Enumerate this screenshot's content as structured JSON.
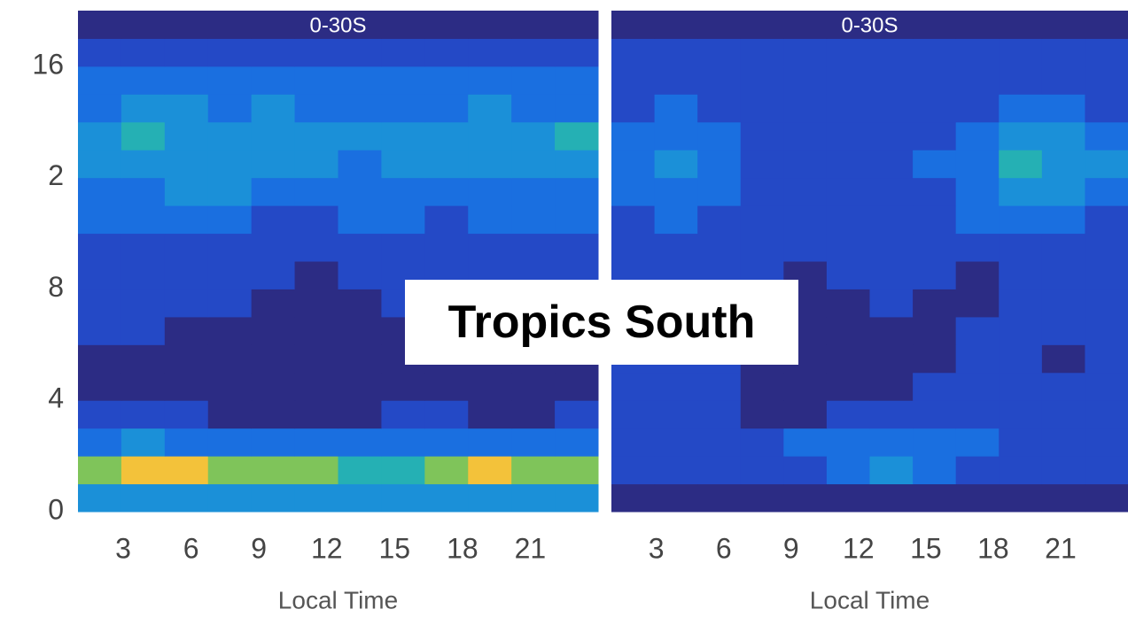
{
  "chart_data": [
    {
      "type": "heatmap",
      "title": "0-30S",
      "x_label": "Local Time",
      "xlim": [
        1,
        24
      ],
      "xticks": [
        3,
        6,
        9,
        12,
        15,
        18,
        21
      ],
      "ylim": [
        0,
        18
      ],
      "yticks": [
        0,
        4,
        8,
        {
          "value": 12,
          "label": "2"
        },
        16
      ],
      "colors": [
        "#2c2c84",
        "#2449c6",
        "#1a6fe0",
        "#1b90d8",
        "#25b0b4",
        "#7fc45a",
        "#f3c23a"
      ],
      "z": [
        [
          3,
          3,
          3,
          3,
          3,
          3,
          3,
          3,
          3,
          3,
          3,
          3
        ],
        [
          5,
          6,
          6,
          5,
          5,
          5,
          4,
          4,
          5,
          6,
          5,
          5
        ],
        [
          2,
          3,
          2,
          2,
          2,
          2,
          2,
          2,
          2,
          2,
          2,
          2
        ],
        [
          1,
          1,
          1,
          0,
          0,
          0,
          0,
          1,
          1,
          0,
          0,
          1
        ],
        [
          0,
          0,
          0,
          0,
          0,
          0,
          0,
          0,
          0,
          0,
          0,
          0
        ],
        [
          0,
          0,
          0,
          0,
          0,
          0,
          0,
          0,
          0,
          0,
          0,
          0
        ],
        [
          1,
          1,
          0,
          0,
          0,
          0,
          0,
          0,
          0,
          0,
          0,
          0
        ],
        [
          1,
          1,
          1,
          1,
          0,
          0,
          0,
          1,
          0,
          0,
          1,
          1
        ],
        [
          1,
          1,
          1,
          1,
          1,
          0,
          1,
          1,
          1,
          1,
          1,
          1
        ],
        [
          1,
          1,
          1,
          1,
          1,
          1,
          1,
          1,
          1,
          1,
          1,
          1
        ],
        [
          2,
          2,
          2,
          2,
          1,
          1,
          2,
          2,
          1,
          2,
          2,
          2
        ],
        [
          2,
          2,
          3,
          3,
          2,
          2,
          2,
          2,
          2,
          2,
          2,
          2
        ],
        [
          3,
          3,
          3,
          3,
          3,
          3,
          2,
          3,
          3,
          3,
          3,
          3
        ],
        [
          3,
          4,
          3,
          3,
          3,
          3,
          3,
          3,
          3,
          3,
          3,
          4
        ],
        [
          2,
          3,
          3,
          2,
          3,
          2,
          2,
          2,
          2,
          3,
          2,
          2
        ],
        [
          2,
          2,
          2,
          2,
          2,
          2,
          2,
          2,
          2,
          2,
          2,
          2
        ],
        [
          1,
          1,
          1,
          1,
          1,
          1,
          1,
          1,
          1,
          1,
          1,
          1
        ],
        [
          0,
          0,
          0,
          0,
          0,
          0,
          0,
          0,
          0,
          0,
          0,
          0
        ]
      ]
    },
    {
      "type": "heatmap",
      "title": "0-30S",
      "x_label": "Local Time",
      "xlim": [
        1,
        24
      ],
      "xticks": [
        3,
        6,
        9,
        12,
        15,
        18,
        21
      ],
      "ylim": [
        0,
        18
      ],
      "colors": [
        "#2c2c84",
        "#2449c6",
        "#1a6fe0",
        "#1b90d8",
        "#25b0b4",
        "#7fc45a",
        "#f3c23a"
      ],
      "z": [
        [
          0,
          0,
          0,
          0,
          0,
          0,
          0,
          0,
          0,
          0,
          0,
          0
        ],
        [
          1,
          1,
          1,
          1,
          1,
          2,
          3,
          2,
          1,
          1,
          1,
          1
        ],
        [
          1,
          1,
          1,
          1,
          2,
          2,
          2,
          2,
          2,
          1,
          1,
          1
        ],
        [
          1,
          1,
          1,
          0,
          0,
          1,
          1,
          1,
          1,
          1,
          1,
          1
        ],
        [
          1,
          1,
          1,
          0,
          0,
          0,
          0,
          1,
          1,
          1,
          1,
          1
        ],
        [
          1,
          1,
          1,
          0,
          0,
          0,
          0,
          0,
          1,
          1,
          0,
          1
        ],
        [
          1,
          1,
          1,
          0,
          0,
          0,
          0,
          0,
          1,
          1,
          1,
          1
        ],
        [
          1,
          1,
          1,
          1,
          0,
          0,
          1,
          0,
          0,
          1,
          1,
          1
        ],
        [
          1,
          1,
          1,
          1,
          0,
          1,
          1,
          1,
          0,
          1,
          1,
          1
        ],
        [
          1,
          1,
          1,
          1,
          1,
          1,
          1,
          1,
          1,
          1,
          1,
          1
        ],
        [
          1,
          2,
          1,
          1,
          1,
          1,
          1,
          1,
          2,
          2,
          2,
          1
        ],
        [
          2,
          2,
          2,
          1,
          1,
          1,
          1,
          1,
          2,
          3,
          3,
          2
        ],
        [
          2,
          3,
          2,
          1,
          1,
          1,
          1,
          2,
          2,
          4,
          3,
          3
        ],
        [
          2,
          2,
          2,
          1,
          1,
          1,
          1,
          1,
          2,
          3,
          3,
          2
        ],
        [
          1,
          2,
          1,
          1,
          1,
          1,
          1,
          1,
          1,
          2,
          2,
          1
        ],
        [
          1,
          1,
          1,
          1,
          1,
          1,
          1,
          1,
          1,
          1,
          1,
          1
        ],
        [
          1,
          1,
          1,
          1,
          1,
          1,
          1,
          1,
          1,
          1,
          1,
          1
        ],
        [
          0,
          0,
          0,
          0,
          0,
          0,
          0,
          0,
          0,
          0,
          0,
          0
        ]
      ]
    }
  ],
  "annotation": "Tropics South"
}
